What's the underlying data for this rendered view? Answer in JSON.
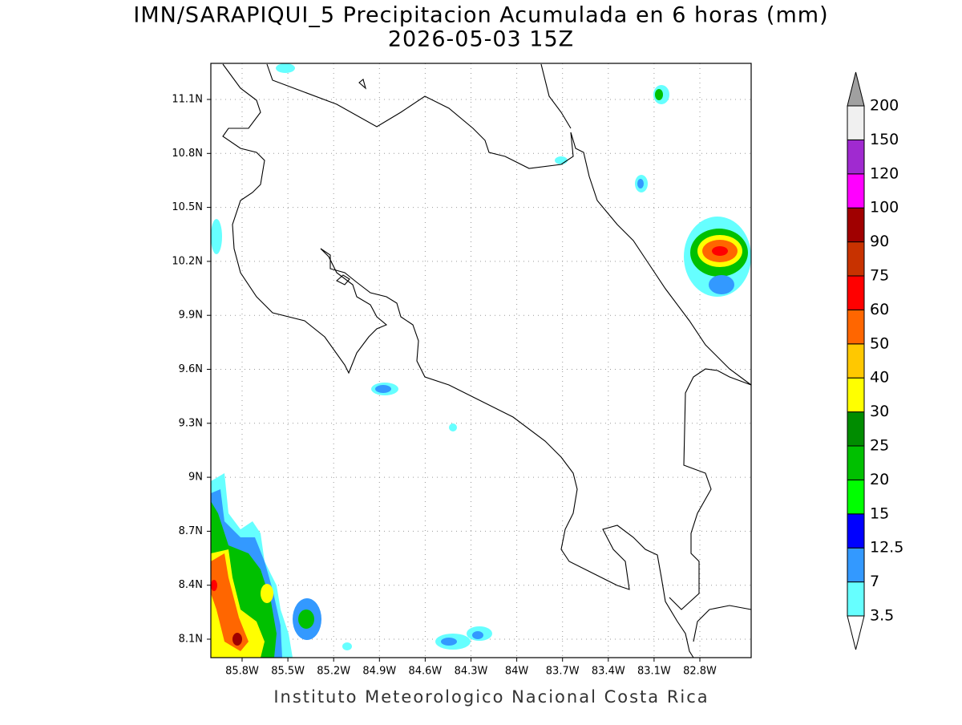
{
  "title": "IMN/SARAPIQUI_5 Precipitacion Acumulada en 6 horas (mm)",
  "subtitle": "2026-05-03 15Z",
  "map": {
    "lat_ticks": [
      "11.1N",
      "10.8N",
      "10.5N",
      "10.2N",
      "9.9N",
      "9.6N",
      "9.3N",
      "9N",
      "8.7N",
      "8.4N",
      "8.1N"
    ],
    "lon_ticks": [
      "85.8W",
      "85.5W",
      "85.2W",
      "84.9W",
      "84.6W",
      "84.3W",
      "84W",
      "83.7W",
      "83.4W",
      "83.1W",
      "82.8W"
    ]
  },
  "colorbar": {
    "levels": [
      3.5,
      7,
      12.5,
      15,
      20,
      25,
      30,
      40,
      50,
      60,
      75,
      90,
      100,
      120,
      150,
      200
    ],
    "colors": [
      "#66ffff",
      "#3399ff",
      "#0000ff",
      "#00ff00",
      "#00c000",
      "#008c00",
      "#ffff00",
      "#ffc800",
      "#ff6600",
      "#ff0000",
      "#c83200",
      "#a00000",
      "#ff00ff",
      "#a02ad0",
      "#f0f0f0"
    ],
    "under_color": "#ffffff",
    "over_color": "#a0a0a0"
  },
  "footer": "Instituto Meteorologico Nacional Costa Rica"
}
